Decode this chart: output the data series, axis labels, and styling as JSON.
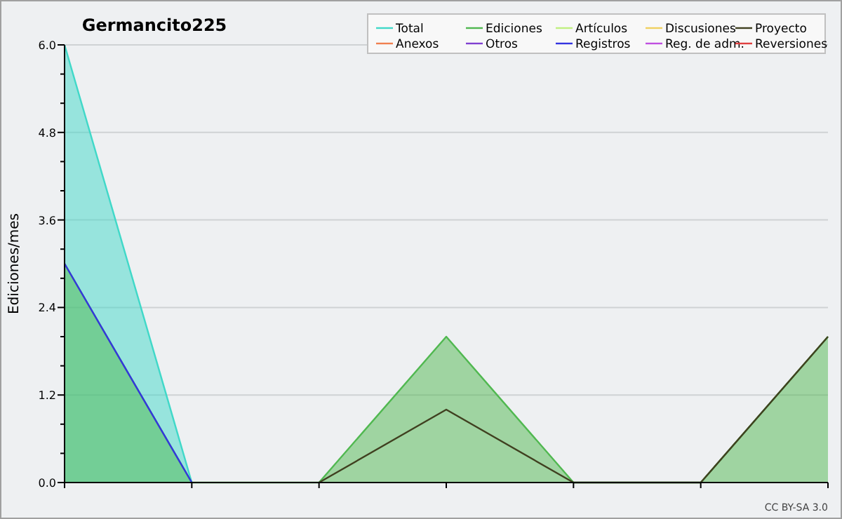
{
  "chart_data": {
    "type": "area",
    "title": "Germancito225",
    "ylabel": "Ediciones/mes",
    "categories": [
      null,
      null,
      null,
      null,
      null,
      null,
      null
    ],
    "ylim": [
      0,
      6
    ],
    "yticks": [
      {
        "value": 0,
        "label": "0.0"
      },
      {
        "value": 0.4,
        "label": null
      },
      {
        "value": 0.8,
        "label": null
      },
      {
        "value": 1.2,
        "label": "1.2"
      },
      {
        "value": 1.6,
        "label": null
      },
      {
        "value": 2,
        "label": null
      },
      {
        "value": 2.4,
        "label": "2.4"
      },
      {
        "value": 2.8,
        "label": null
      },
      {
        "value": 3.2,
        "label": null
      },
      {
        "value": 3.6,
        "label": "3.6"
      },
      {
        "value": 4,
        "label": null
      },
      {
        "value": 4.4,
        "label": null
      },
      {
        "value": 4.8,
        "label": "4.8"
      },
      {
        "value": 5.2,
        "label": null
      },
      {
        "value": 5.6,
        "label": null
      },
      {
        "value": 6,
        "label": "6.0"
      }
    ],
    "grid": "y",
    "legend": "top right",
    "annotations": [
      "CC BY-SA 3.0"
    ],
    "series": [
      {
        "name": "Total",
        "color": "#40d8c8",
        "values": [
          6,
          0,
          null,
          null,
          null,
          null,
          null
        ]
      },
      {
        "name": "Ediciones",
        "color": "#50b850",
        "values": [
          3,
          0,
          0,
          2,
          0,
          0,
          2
        ]
      },
      {
        "name": "Artículos",
        "type": "line",
        "color": "#c0f080",
        "values": [
          null,
          null,
          null,
          null,
          null,
          null,
          null
        ]
      },
      {
        "name": "Discusiones",
        "type": "line",
        "color": "#f0d060",
        "values": [
          null,
          null,
          null,
          null,
          null,
          null,
          null
        ]
      },
      {
        "name": "Proyecto",
        "type": "line",
        "color": "#404020",
        "values": [
          null,
          null,
          0,
          1,
          0,
          0,
          2
        ]
      },
      {
        "name": "Anexos",
        "type": "line",
        "color": "#f08050",
        "values": [
          null,
          null,
          null,
          null,
          null,
          null,
          null
        ]
      },
      {
        "name": "Otros",
        "type": "line",
        "color": "#8040d0",
        "values": [
          null,
          null,
          null,
          null,
          null,
          null,
          null
        ]
      },
      {
        "name": "Registros",
        "type": "line",
        "color": "#3434e0",
        "values": [
          3,
          0,
          null,
          null,
          null,
          null,
          null
        ]
      },
      {
        "name": "Reg. de adm.",
        "type": "line",
        "color": "#c050e0",
        "values": [
          null,
          null,
          null,
          null,
          null,
          null,
          null
        ]
      },
      {
        "name": "Reversiones",
        "type": "line",
        "color": "#e04040",
        "values": [
          null,
          null,
          null,
          null,
          null,
          null,
          null
        ]
      }
    ]
  }
}
